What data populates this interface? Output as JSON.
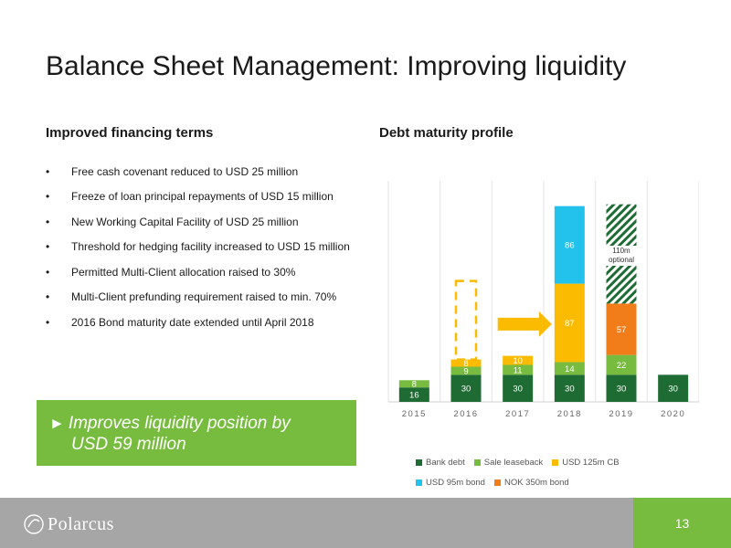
{
  "title": "Balance Sheet Management: Improving liquidity",
  "left_heading": "Improved financing terms",
  "right_heading": "Debt maturity profile",
  "bullet_char": "•",
  "bullets": [
    "Free cash covenant reduced to USD 25 million",
    "Freeze of loan principal repayments of USD 15 million",
    "New Working Capital Facility of USD 25 million",
    "Threshold for hedging facility increased to USD 15 million",
    "Permitted Multi-Client allocation raised to 30%",
    "Multi-Client prefunding requirement raised to min. 70%",
    "2016 Bond maturity date extended until April 2018"
  ],
  "callout": {
    "arrow": "►",
    "line1": "Improves liquidity position by",
    "line2": "USD 59 million"
  },
  "chart_data": {
    "type": "bar",
    "stacked": true,
    "categories": [
      "2015",
      "2016",
      "2017",
      "2018",
      "2019",
      "2020"
    ],
    "series": [
      {
        "name": "Bank debt",
        "color": "#1e6b34",
        "values": [
          16,
          30,
          30,
          30,
          30,
          30
        ]
      },
      {
        "name": "Sale leaseback",
        "color": "#77bc3f",
        "values": [
          8,
          9,
          11,
          14,
          22,
          0
        ]
      },
      {
        "name": "USD 125m CB",
        "color": "#fbbb00",
        "values": [
          0,
          8,
          10,
          87,
          0,
          0
        ]
      },
      {
        "name": "USD 95m bond",
        "color": "#22c2ed",
        "values": [
          0,
          0,
          0,
          86,
          0,
          0
        ]
      },
      {
        "name": "NOK 350m bond",
        "color": "#f07c1a",
        "values": [
          0,
          0,
          0,
          0,
          57,
          0
        ]
      }
    ],
    "annotations": {
      "optional_label": "110m optional",
      "optional_year": "2019",
      "optional_value": 110,
      "moved_from_year": "2016",
      "moved_to_year": "2018",
      "moved_value": 87
    },
    "grid": "vertical",
    "ylim": [
      0,
      245
    ],
    "legend_position": "bottom"
  },
  "logo_text": "Polarcus",
  "page_number": "13"
}
